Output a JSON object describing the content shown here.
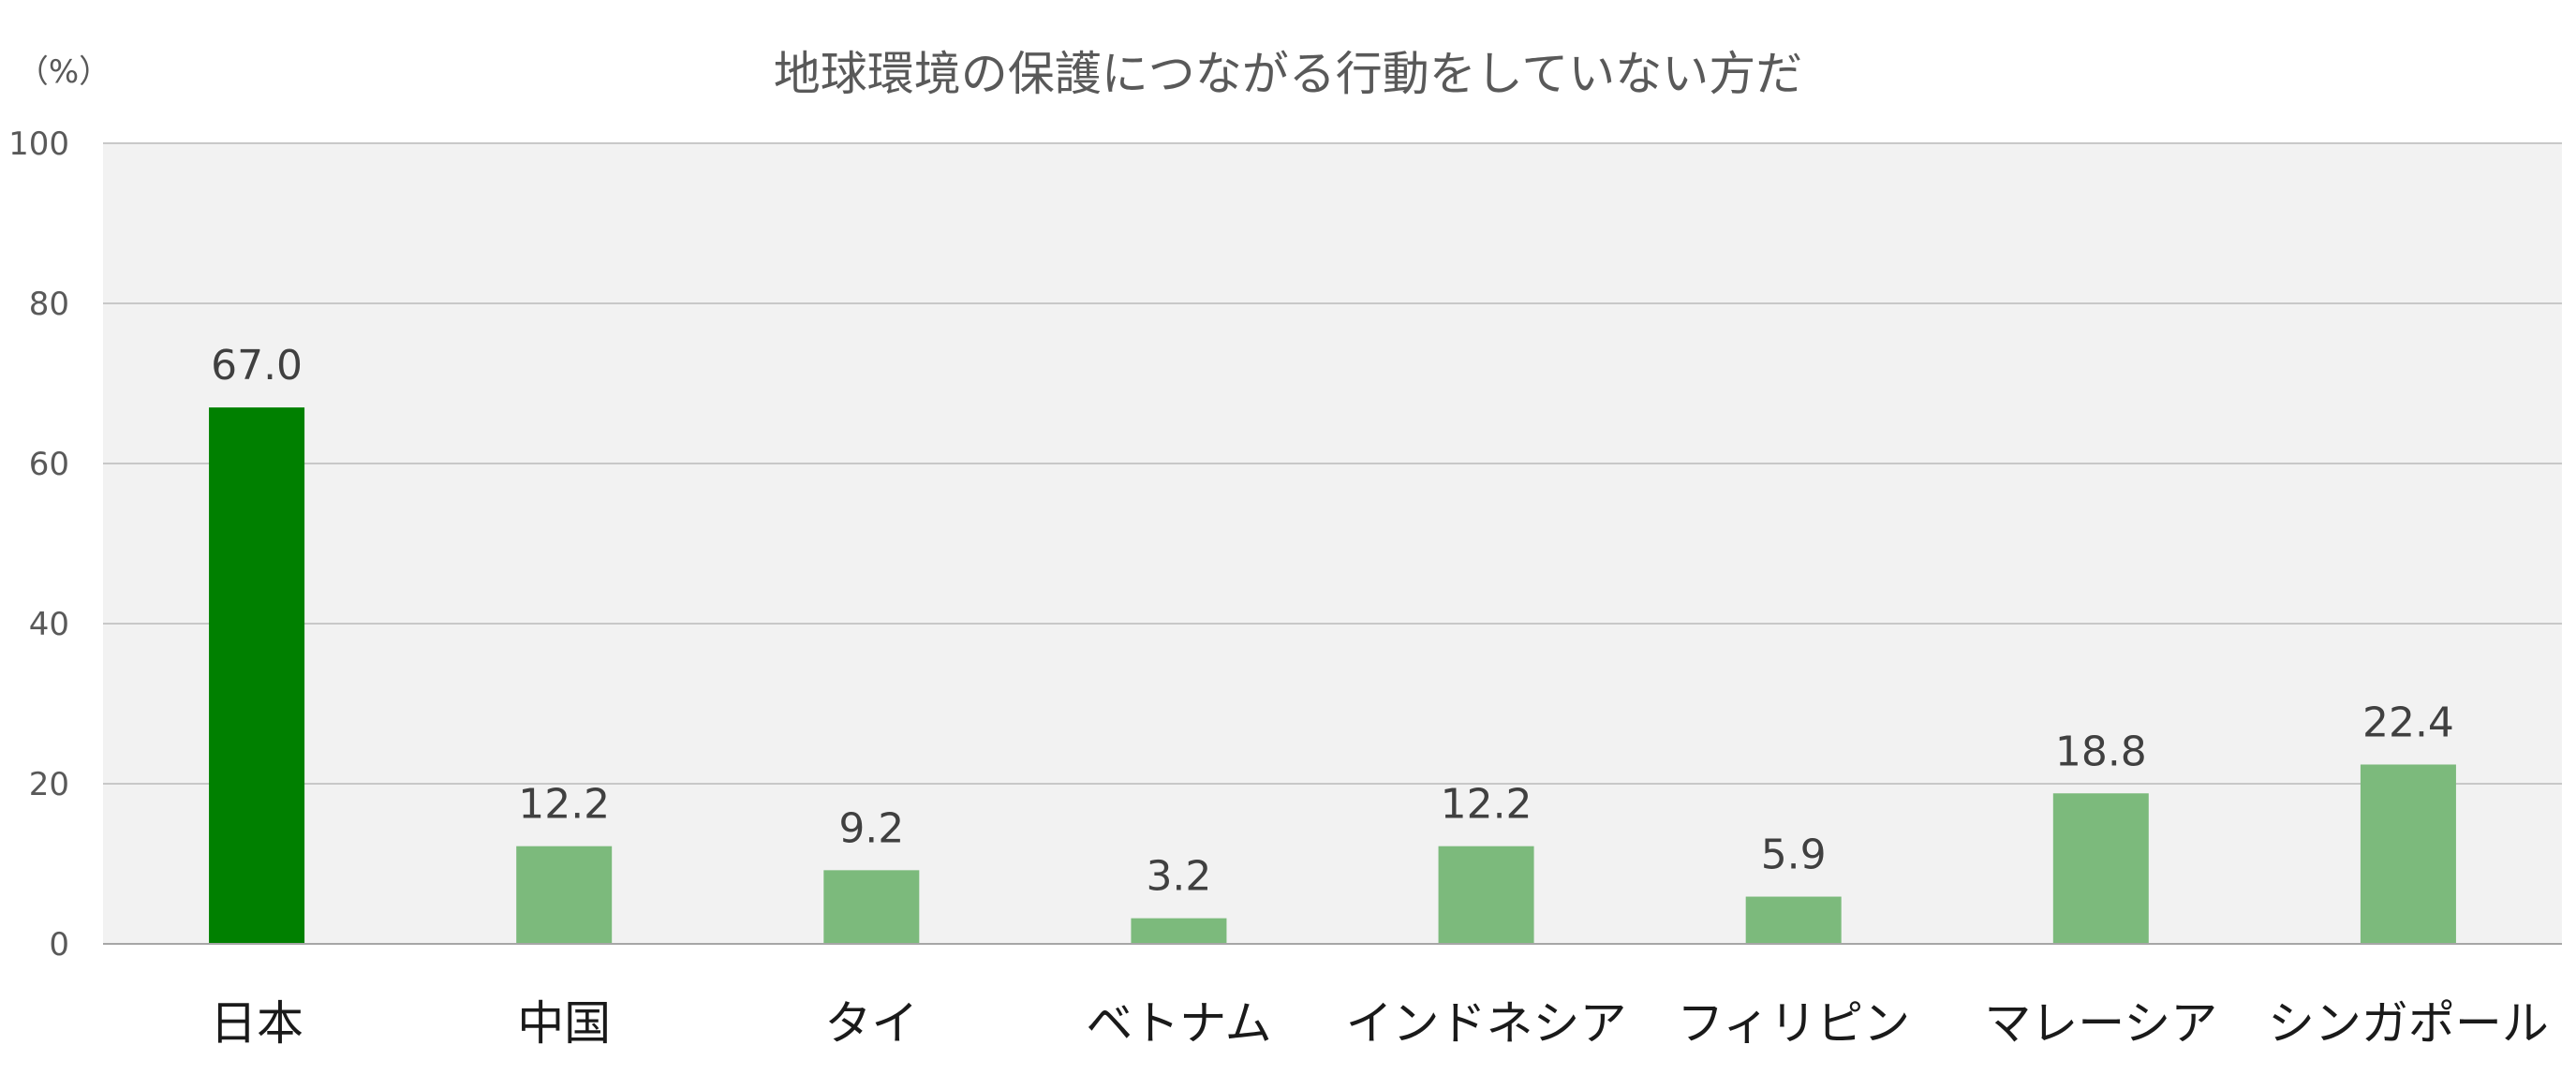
{
  "chart_data": {
    "type": "bar",
    "title": "地球環境の保護につながる行動をしていない方だ",
    "unit_label": "（%）",
    "categories": [
      "日本",
      "中国",
      "タイ",
      "ベトナム",
      "インドネシア",
      "フィリピン",
      "マレーシア",
      "シンガポール"
    ],
    "values": [
      67.0,
      12.2,
      9.2,
      3.2,
      12.2,
      5.9,
      18.8,
      22.4
    ],
    "value_labels": [
      "67.0",
      "12.2",
      "9.2",
      "3.2",
      "12.2",
      "5.9",
      "18.8",
      "22.4"
    ],
    "ylim": [
      0,
      100
    ],
    "yticks": [
      0,
      20,
      40,
      60,
      80,
      100
    ],
    "ytick_labels": [
      "0",
      "20",
      "40",
      "60",
      "80",
      "100"
    ],
    "grid": true,
    "colors": {
      "highlight": "#008000",
      "bar": "#7cba7c",
      "plot_background": "#f2f2f2",
      "gridline": "#c8c8c8",
      "axis": "#a6a6a6"
    },
    "highlight_index": 0
  }
}
